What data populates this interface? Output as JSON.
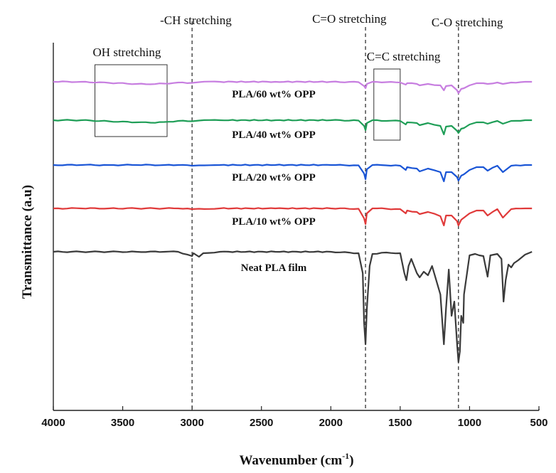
{
  "chart_data": {
    "type": "line",
    "title": "",
    "xlabel": "Wavenumber (cm",
    "xlabel_sup": "-1",
    "xlabel_tail": ")",
    "ylabel": "Transmittance (a.u)",
    "xlim": [
      4000,
      500
    ],
    "x_reversed": true,
    "x_ticks": [
      4000,
      3500,
      3000,
      2500,
      2000,
      1500,
      1000,
      500
    ],
    "y_ticks": [],
    "grid": false,
    "annotations": {
      "ch": {
        "text": "-CH stretching",
        "x": 3000
      },
      "co_double": {
        "text": "C=O stretching",
        "x": 1750
      },
      "co_single": {
        "text": "C-O stretching",
        "x": 1080
      },
      "oh": {
        "text": "OH stretching",
        "x_range": [
          3700,
          3180
        ]
      },
      "cc": {
        "text": "C=C stretching",
        "x_range": [
          1690,
          1500
        ]
      }
    },
    "baseline_noise": {
      "x": [
        4000,
        3800,
        3600,
        3400,
        3200,
        3100,
        3000,
        2800,
        2400,
        2000,
        1800,
        1600,
        1500,
        1400,
        1300,
        1200,
        1100,
        1000,
        900,
        800,
        700,
        600,
        550
      ],
      "note": ""
    },
    "series": [
      {
        "name": "PLA/60 wt% OPP",
        "color": "#c77ee0",
        "offset": 0,
        "points": [
          [
            4000,
            0
          ],
          [
            3800,
            0
          ],
          [
            3600,
            1.5
          ],
          [
            3400,
            3
          ],
          [
            3300,
            3.5
          ],
          [
            3200,
            2.5
          ],
          [
            3100,
            1
          ],
          [
            3000,
            1.5
          ],
          [
            2950,
            0.5
          ],
          [
            2800,
            0
          ],
          [
            2400,
            0
          ],
          [
            2000,
            0
          ],
          [
            1800,
            0.5
          ],
          [
            1760,
            6
          ],
          [
            1750,
            9
          ],
          [
            1740,
            3
          ],
          [
            1700,
            0
          ],
          [
            1600,
            0.5
          ],
          [
            1500,
            1
          ],
          [
            1460,
            4
          ],
          [
            1450,
            2
          ],
          [
            1380,
            3
          ],
          [
            1360,
            5
          ],
          [
            1300,
            3
          ],
          [
            1210,
            5
          ],
          [
            1185,
            12
          ],
          [
            1170,
            6
          ],
          [
            1130,
            5
          ],
          [
            1090,
            12
          ],
          [
            1080,
            16
          ],
          [
            1060,
            10
          ],
          [
            1040,
            9
          ],
          [
            1000,
            5
          ],
          [
            950,
            2
          ],
          [
            900,
            2
          ],
          [
            870,
            3
          ],
          [
            800,
            1
          ],
          [
            760,
            3
          ],
          [
            700,
            1
          ],
          [
            600,
            0
          ],
          [
            550,
            0
          ]
        ]
      },
      {
        "name": "PLA/40 wt% OPP",
        "color": "#1f9e57",
        "offset": 0,
        "points": [
          [
            4000,
            0
          ],
          [
            3800,
            0
          ],
          [
            3600,
            1.5
          ],
          [
            3400,
            3
          ],
          [
            3300,
            3.5
          ],
          [
            3200,
            2.5
          ],
          [
            3100,
            1
          ],
          [
            3000,
            1.5
          ],
          [
            2950,
            0.5
          ],
          [
            2800,
            0
          ],
          [
            2400,
            0
          ],
          [
            2000,
            0
          ],
          [
            1800,
            0.5
          ],
          [
            1760,
            8
          ],
          [
            1750,
            14
          ],
          [
            1740,
            4
          ],
          [
            1700,
            0
          ],
          [
            1600,
            1
          ],
          [
            1500,
            1
          ],
          [
            1460,
            6
          ],
          [
            1450,
            3
          ],
          [
            1380,
            4
          ],
          [
            1360,
            7
          ],
          [
            1300,
            4
          ],
          [
            1210,
            8
          ],
          [
            1185,
            20
          ],
          [
            1170,
            9
          ],
          [
            1130,
            8
          ],
          [
            1090,
            15
          ],
          [
            1080,
            18
          ],
          [
            1060,
            12
          ],
          [
            1040,
            11
          ],
          [
            1000,
            6
          ],
          [
            950,
            3
          ],
          [
            900,
            3
          ],
          [
            870,
            5
          ],
          [
            800,
            1
          ],
          [
            760,
            5
          ],
          [
            700,
            1
          ],
          [
            600,
            0
          ],
          [
            550,
            0
          ]
        ]
      },
      {
        "name": "PLA/20 wt% OPP",
        "color": "#1a55d6",
        "offset": 0,
        "points": [
          [
            4000,
            0
          ],
          [
            3800,
            0
          ],
          [
            3600,
            0
          ],
          [
            3400,
            0
          ],
          [
            3200,
            0
          ],
          [
            3100,
            0
          ],
          [
            3000,
            1
          ],
          [
            2950,
            0.5
          ],
          [
            2800,
            0
          ],
          [
            2400,
            0
          ],
          [
            2000,
            0
          ],
          [
            1800,
            0.5
          ],
          [
            1760,
            12
          ],
          [
            1750,
            20
          ],
          [
            1740,
            6
          ],
          [
            1700,
            0
          ],
          [
            1600,
            0.5
          ],
          [
            1500,
            1
          ],
          [
            1460,
            7
          ],
          [
            1450,
            3
          ],
          [
            1380,
            5
          ],
          [
            1360,
            9
          ],
          [
            1300,
            5
          ],
          [
            1210,
            10
          ],
          [
            1185,
            23
          ],
          [
            1170,
            10
          ],
          [
            1130,
            10
          ],
          [
            1090,
            17
          ],
          [
            1080,
            22
          ],
          [
            1060,
            15
          ],
          [
            1040,
            13
          ],
          [
            1000,
            7
          ],
          [
            950,
            3
          ],
          [
            900,
            3
          ],
          [
            870,
            8
          ],
          [
            800,
            1
          ],
          [
            760,
            10
          ],
          [
            700,
            1
          ],
          [
            600,
            0
          ],
          [
            550,
            0
          ]
        ]
      },
      {
        "name": "PLA/10 wt% OPP",
        "color": "#e03a3a",
        "offset": 0,
        "points": [
          [
            4000,
            0
          ],
          [
            3800,
            0
          ],
          [
            3600,
            0
          ],
          [
            3400,
            0
          ],
          [
            3200,
            0
          ],
          [
            3100,
            0
          ],
          [
            3000,
            1
          ],
          [
            2950,
            0.5
          ],
          [
            2800,
            0
          ],
          [
            2400,
            0
          ],
          [
            2000,
            0
          ],
          [
            1800,
            0.5
          ],
          [
            1760,
            14
          ],
          [
            1750,
            22
          ],
          [
            1740,
            7
          ],
          [
            1700,
            0
          ],
          [
            1600,
            0.5
          ],
          [
            1500,
            1
          ],
          [
            1460,
            7
          ],
          [
            1450,
            3
          ],
          [
            1380,
            5
          ],
          [
            1360,
            8
          ],
          [
            1300,
            5
          ],
          [
            1210,
            11
          ],
          [
            1185,
            24
          ],
          [
            1170,
            10
          ],
          [
            1130,
            10
          ],
          [
            1090,
            18
          ],
          [
            1080,
            24
          ],
          [
            1060,
            16
          ],
          [
            1040,
            13
          ],
          [
            1000,
            7
          ],
          [
            950,
            3
          ],
          [
            900,
            3
          ],
          [
            870,
            10
          ],
          [
            800,
            1
          ],
          [
            760,
            13
          ],
          [
            700,
            1
          ],
          [
            600,
            0
          ],
          [
            550,
            0
          ]
        ]
      },
      {
        "name": "Neat PLA film",
        "color": "#3a3a3a",
        "offset": 0,
        "points": [
          [
            4000,
            0
          ],
          [
            3800,
            0
          ],
          [
            3600,
            0
          ],
          [
            3400,
            0
          ],
          [
            3200,
            0
          ],
          [
            3100,
            0
          ],
          [
            3000,
            6
          ],
          [
            2990,
            2
          ],
          [
            2950,
            7
          ],
          [
            2920,
            2
          ],
          [
            2800,
            0
          ],
          [
            2400,
            0
          ],
          [
            2000,
            0
          ],
          [
            1800,
            2
          ],
          [
            1770,
            30
          ],
          [
            1760,
            100
          ],
          [
            1750,
            130
          ],
          [
            1740,
            80
          ],
          [
            1720,
            20
          ],
          [
            1700,
            3
          ],
          [
            1600,
            1
          ],
          [
            1500,
            2
          ],
          [
            1470,
            30
          ],
          [
            1455,
            40
          ],
          [
            1440,
            20
          ],
          [
            1420,
            10
          ],
          [
            1380,
            30
          ],
          [
            1360,
            36
          ],
          [
            1330,
            28
          ],
          [
            1300,
            33
          ],
          [
            1270,
            20
          ],
          [
            1210,
            60
          ],
          [
            1185,
            130
          ],
          [
            1170,
            80
          ],
          [
            1150,
            25
          ],
          [
            1130,
            90
          ],
          [
            1110,
            70
          ],
          [
            1090,
            130
          ],
          [
            1080,
            155
          ],
          [
            1070,
            140
          ],
          [
            1060,
            90
          ],
          [
            1045,
            100
          ],
          [
            1040,
            60
          ],
          [
            1000,
            5
          ],
          [
            960,
            3
          ],
          [
            930,
            5
          ],
          [
            900,
            6
          ],
          [
            870,
            35
          ],
          [
            850,
            5
          ],
          [
            800,
            3
          ],
          [
            770,
            10
          ],
          [
            755,
            70
          ],
          [
            740,
            40
          ],
          [
            720,
            18
          ],
          [
            700,
            22
          ],
          [
            680,
            16
          ],
          [
            650,
            12
          ],
          [
            600,
            4
          ],
          [
            550,
            0
          ]
        ]
      }
    ]
  }
}
